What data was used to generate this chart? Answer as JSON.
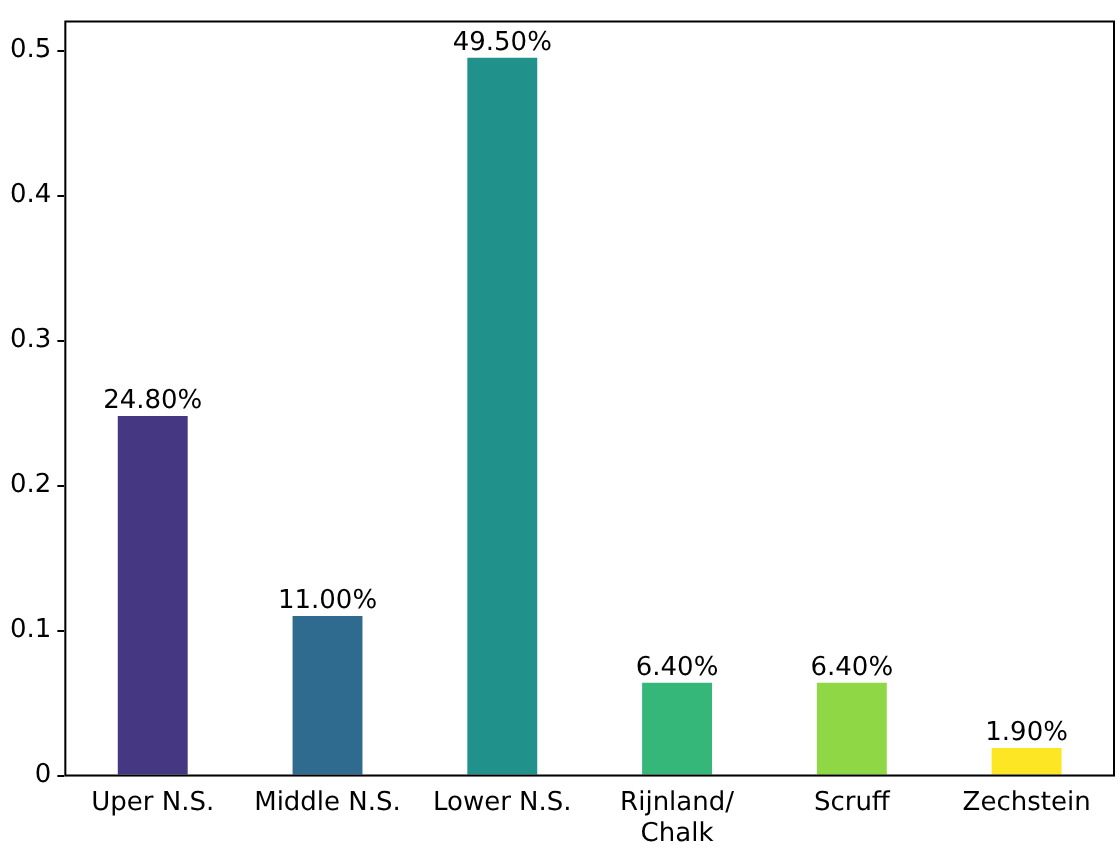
{
  "chart_data": {
    "type": "bar",
    "categories": [
      "Uper N.S.",
      "Middle N.S.",
      "Lower N.S.",
      "Rijnland/\nChalk",
      "Scruff",
      "Zechstein"
    ],
    "values": [
      0.248,
      0.11,
      0.495,
      0.064,
      0.064,
      0.019
    ],
    "value_labels": [
      "24.80%",
      "11.00%",
      "49.50%",
      "6.40%",
      "6.40%",
      "1.90%"
    ],
    "colors": [
      "#453781",
      "#2f6b8e",
      "#21918c",
      "#35b779",
      "#8fd744",
      "#fde725"
    ],
    "ylim": [
      0,
      0.52
    ],
    "yticks": [
      0,
      0.1,
      0.2,
      0.3,
      0.4,
      0.5
    ],
    "grid": false,
    "legend": false
  }
}
